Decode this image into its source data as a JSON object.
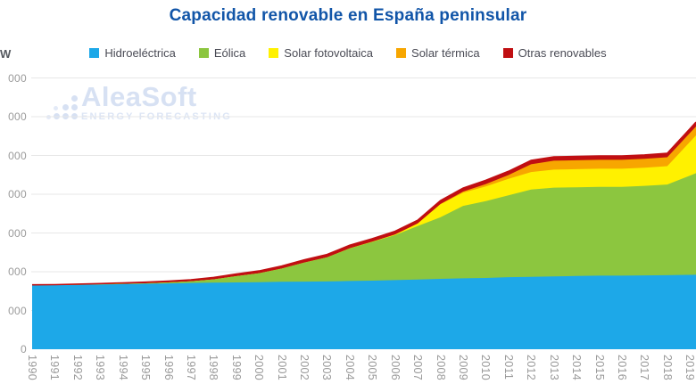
{
  "title": {
    "text": "Capacidad renovable en España peninsular",
    "color": "#1155A8"
  },
  "watermark": {
    "name": "AleaSoft",
    "subtitle": "ENERGY FORECASTING"
  },
  "y_axis": {
    "unit_label": "W",
    "ticks": [
      {
        "label": "000",
        "value": 70000
      },
      {
        "label": "000",
        "value": 60000
      },
      {
        "label": "000",
        "value": 50000
      },
      {
        "label": "000",
        "value": 40000
      },
      {
        "label": "000",
        "value": 30000
      },
      {
        "label": "000",
        "value": 20000
      },
      {
        "label": "000",
        "value": 10000
      },
      {
        "label": "0",
        "value": 0
      }
    ]
  },
  "colors": {
    "grid": "#E7E7E7",
    "axis_text": "#9A9A9A",
    "legend_text": "#4A4B55",
    "watermark": "#D7E1F3"
  },
  "chart_data": {
    "type": "area",
    "stacked": true,
    "title": "Capacidad renovable en España peninsular",
    "ylabel": "MW",
    "ylim": [
      0,
      75000
    ],
    "gridline_step": 10000,
    "grid": true,
    "legend_position": "top",
    "x": [
      1990,
      1991,
      1992,
      1993,
      1994,
      1995,
      1996,
      1997,
      1998,
      1999,
      2000,
      2001,
      2002,
      2003,
      2004,
      2005,
      2006,
      2007,
      2008,
      2009,
      2010,
      2011,
      2012,
      2013,
      2014,
      2015,
      2016,
      2017,
      2018,
      2019
    ],
    "series": [
      {
        "name": "Hidroeléctrica",
        "color": "#1DA8E8",
        "values": [
          16500,
          16550,
          16600,
          16700,
          16800,
          16900,
          17000,
          17100,
          17200,
          17250,
          17300,
          17400,
          17450,
          17500,
          17600,
          17700,
          17850,
          18000,
          18150,
          18300,
          18400,
          18600,
          18700,
          18800,
          18900,
          19000,
          19000,
          19050,
          19100,
          19200
        ]
      },
      {
        "name": "Eólica",
        "color": "#8CC63F",
        "values": [
          10,
          10,
          50,
          50,
          70,
          110,
          230,
          420,
          830,
          1600,
          2300,
          3400,
          4900,
          6200,
          8400,
          10000,
          11600,
          13800,
          15900,
          18700,
          19800,
          21100,
          22500,
          22900,
          22900,
          22900,
          22900,
          23100,
          23400,
          25600
        ]
      },
      {
        "name": "Solar fotovoltaica",
        "color": "#FFF100",
        "values": [
          0,
          0,
          0,
          0,
          1,
          1,
          1,
          1,
          1,
          2,
          2,
          3,
          5,
          10,
          20,
          40,
          130,
          630,
          3350,
          3400,
          3800,
          4250,
          4530,
          4650,
          4650,
          4670,
          4670,
          4690,
          4750,
          8700
        ]
      },
      {
        "name": "Solar térmica",
        "color": "#F7A600",
        "values": [
          0,
          0,
          0,
          0,
          0,
          0,
          0,
          0,
          0,
          0,
          0,
          0,
          0,
          0,
          0,
          0,
          0,
          10,
          60,
          280,
          630,
          1000,
          2000,
          2300,
          2300,
          2300,
          2300,
          2300,
          2300,
          2300
        ]
      },
      {
        "name": "Otras renovables",
        "color": "#C00F12",
        "values": [
          100,
          110,
          150,
          200,
          250,
          300,
          350,
          400,
          500,
          550,
          600,
          650,
          700,
          750,
          800,
          800,
          850,
          850,
          900,
          900,
          950,
          950,
          1000,
          1000,
          1000,
          1000,
          1000,
          1000,
          1000,
          1100
        ]
      }
    ]
  }
}
